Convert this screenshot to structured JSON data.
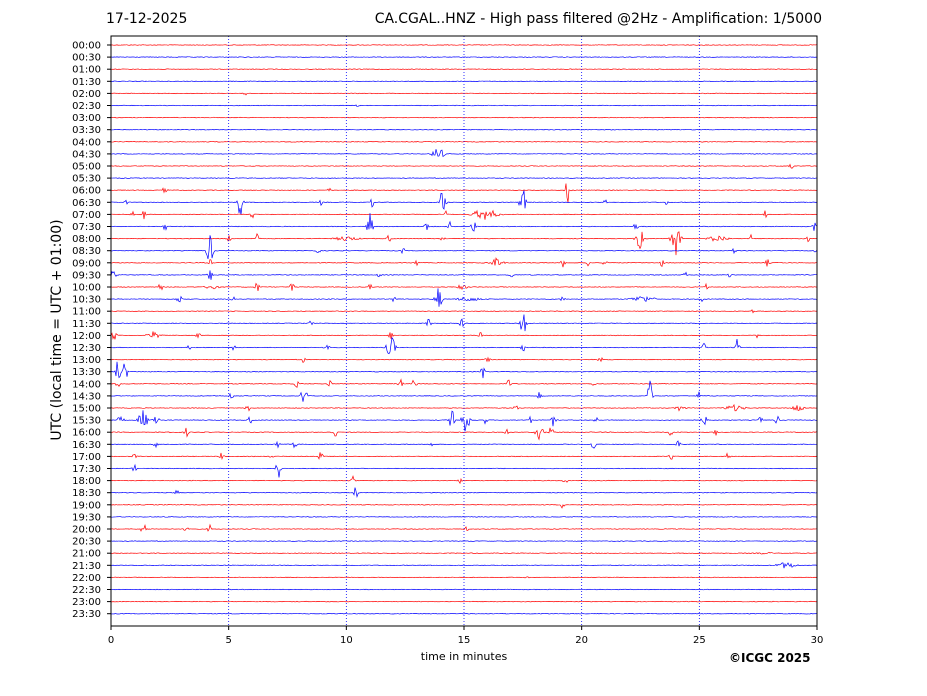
{
  "header": {
    "date": "17-12-2025",
    "title": "CA.CGAL..HNZ - High pass filtered @2Hz - Amplification: 1/5000"
  },
  "chart_data": {
    "type": "line",
    "title": "CA.CGAL..HNZ - High pass filtered @2Hz - Amplification: 1/5000",
    "subtitle": "17-12-2025",
    "xlabel": "time in minutes",
    "ylabel": "UTC (local time = UTC + 01:00)",
    "xlim": [
      0,
      30
    ],
    "x_ticks": [
      0,
      5,
      10,
      15,
      20,
      25,
      30
    ],
    "y_tick_labels": [
      "00:00",
      "00:30",
      "01:00",
      "01:30",
      "02:00",
      "02:30",
      "03:00",
      "03:30",
      "04:00",
      "04:30",
      "05:00",
      "05:30",
      "06:00",
      "06:30",
      "07:00",
      "07:30",
      "08:00",
      "08:30",
      "09:00",
      "09:30",
      "10:00",
      "10:30",
      "11:00",
      "11:30",
      "12:00",
      "12:30",
      "13:00",
      "13:30",
      "14:00",
      "14:30",
      "15:00",
      "15:30",
      "16:00",
      "16:30",
      "17:00",
      "17:30",
      "18:00",
      "18:30",
      "19:00",
      "19:30",
      "20:00",
      "20:30",
      "21:00",
      "21:30",
      "22:00",
      "22:30",
      "23:00",
      "23:30"
    ],
    "trace_colors": [
      "#ff0000",
      "#0000ff"
    ],
    "vertical_grid": "dotted blue at 5, 10, 15, 20, 25 minutes",
    "events": [
      {
        "row": 4,
        "x": 5.7,
        "amp": 0.3,
        "w": 0.08
      },
      {
        "row": 2,
        "x": 21.3,
        "amp": 0.15,
        "w": 0.05
      },
      {
        "row": 5,
        "x": 10.5,
        "amp": 0.25,
        "w": 0.1
      },
      {
        "row": 9,
        "x": 13.9,
        "amp": 1.0,
        "w": 0.25
      },
      {
        "row": 10,
        "x": 28.9,
        "amp": 0.7,
        "w": 0.1
      },
      {
        "row": 12,
        "x": 2.3,
        "amp": 0.8,
        "w": 0.1
      },
      {
        "row": 12,
        "x": 9.3,
        "amp": 0.35,
        "w": 0.1
      },
      {
        "row": 12,
        "x": 19.4,
        "amp": 1.6,
        "w": 0.12
      },
      {
        "row": 13,
        "x": 0.6,
        "amp": 0.5,
        "w": 0.1
      },
      {
        "row": 13,
        "x": 5.5,
        "amp": 2.0,
        "w": 0.12
      },
      {
        "row": 13,
        "x": 8.9,
        "amp": 0.5,
        "w": 0.08
      },
      {
        "row": 13,
        "x": 11.1,
        "amp": 0.6,
        "w": 0.1
      },
      {
        "row": 13,
        "x": 14.1,
        "amp": 1.8,
        "w": 0.15
      },
      {
        "row": 13,
        "x": 17.5,
        "amp": 1.8,
        "w": 0.15
      },
      {
        "row": 13,
        "x": 21.0,
        "amp": 0.6,
        "w": 0.08
      },
      {
        "row": 13,
        "x": 23.6,
        "amp": 0.5,
        "w": 0.08
      },
      {
        "row": 14,
        "x": 0.9,
        "amp": 0.5,
        "w": 0.1
      },
      {
        "row": 14,
        "x": 1.4,
        "amp": 0.6,
        "w": 0.1
      },
      {
        "row": 14,
        "x": 6.0,
        "amp": 0.6,
        "w": 0.1
      },
      {
        "row": 14,
        "x": 14.2,
        "amp": 0.6,
        "w": 0.1
      },
      {
        "row": 14,
        "x": 15.9,
        "amp": 0.7,
        "w": 0.6
      },
      {
        "row": 14,
        "x": 27.8,
        "amp": 0.5,
        "w": 0.08
      },
      {
        "row": 15,
        "x": 2.3,
        "amp": 0.5,
        "w": 0.1
      },
      {
        "row": 15,
        "x": 11.0,
        "amp": 2.0,
        "w": 0.12
      },
      {
        "row": 15,
        "x": 13.4,
        "amp": 0.6,
        "w": 0.1
      },
      {
        "row": 15,
        "x": 14.4,
        "amp": 0.6,
        "w": 0.08
      },
      {
        "row": 15,
        "x": 15.4,
        "amp": 0.9,
        "w": 0.1
      },
      {
        "row": 15,
        "x": 22.3,
        "amp": 0.6,
        "w": 0.1
      },
      {
        "row": 15,
        "x": 29.9,
        "amp": 0.6,
        "w": 0.1
      },
      {
        "row": 16,
        "x": 5.0,
        "amp": 0.6,
        "w": 0.1
      },
      {
        "row": 16,
        "x": 6.2,
        "amp": 0.6,
        "w": 0.1
      },
      {
        "row": 16,
        "x": 10.0,
        "amp": 0.3,
        "w": 0.6
      },
      {
        "row": 16,
        "x": 11.8,
        "amp": 0.6,
        "w": 0.1
      },
      {
        "row": 16,
        "x": 14.1,
        "amp": 0.4,
        "w": 0.1
      },
      {
        "row": 16,
        "x": 22.5,
        "amp": 1.8,
        "w": 0.2
      },
      {
        "row": 16,
        "x": 24.0,
        "amp": 2.2,
        "w": 0.2
      },
      {
        "row": 16,
        "x": 25.8,
        "amp": 0.4,
        "w": 0.5
      },
      {
        "row": 16,
        "x": 27.2,
        "amp": 0.5,
        "w": 0.1
      },
      {
        "row": 16,
        "x": 29.6,
        "amp": 0.5,
        "w": 0.1
      },
      {
        "row": 17,
        "x": 4.2,
        "amp": 2.0,
        "w": 0.15
      },
      {
        "row": 17,
        "x": 8.8,
        "amp": 0.4,
        "w": 0.1
      },
      {
        "row": 17,
        "x": 12.4,
        "amp": 0.4,
        "w": 0.1
      },
      {
        "row": 17,
        "x": 26.5,
        "amp": 0.5,
        "w": 0.1
      },
      {
        "row": 17,
        "x": 29.9,
        "amp": 0.4,
        "w": 0.1
      },
      {
        "row": 18,
        "x": 4.2,
        "amp": 0.5,
        "w": 0.1
      },
      {
        "row": 18,
        "x": 13.0,
        "amp": 0.5,
        "w": 0.1
      },
      {
        "row": 18,
        "x": 16.4,
        "amp": 0.6,
        "w": 0.3
      },
      {
        "row": 18,
        "x": 19.2,
        "amp": 0.6,
        "w": 0.1
      },
      {
        "row": 18,
        "x": 20.3,
        "amp": 0.6,
        "w": 0.1
      },
      {
        "row": 18,
        "x": 21.0,
        "amp": 0.6,
        "w": 0.1
      },
      {
        "row": 18,
        "x": 23.4,
        "amp": 0.5,
        "w": 0.1
      },
      {
        "row": 18,
        "x": 27.9,
        "amp": 0.5,
        "w": 0.1
      },
      {
        "row": 19,
        "x": 0.1,
        "amp": 0.6,
        "w": 0.15
      },
      {
        "row": 19,
        "x": 4.2,
        "amp": 0.8,
        "w": 0.12
      },
      {
        "row": 19,
        "x": 11.4,
        "amp": 0.35,
        "w": 0.1
      },
      {
        "row": 19,
        "x": 17.0,
        "amp": 0.4,
        "w": 0.1
      },
      {
        "row": 19,
        "x": 24.4,
        "amp": 0.4,
        "w": 0.1
      },
      {
        "row": 19,
        "x": 26.3,
        "amp": 0.4,
        "w": 0.1
      },
      {
        "row": 20,
        "x": 2.1,
        "amp": 0.6,
        "w": 0.1
      },
      {
        "row": 20,
        "x": 4.3,
        "amp": 0.4,
        "w": 0.3
      },
      {
        "row": 20,
        "x": 6.2,
        "amp": 0.8,
        "w": 0.1
      },
      {
        "row": 20,
        "x": 7.7,
        "amp": 0.7,
        "w": 0.1
      },
      {
        "row": 20,
        "x": 11.0,
        "amp": 0.7,
        "w": 0.1
      },
      {
        "row": 20,
        "x": 14.9,
        "amp": 0.3,
        "w": 0.3
      },
      {
        "row": 20,
        "x": 25.3,
        "amp": 0.4,
        "w": 0.1
      },
      {
        "row": 21,
        "x": 2.9,
        "amp": 0.5,
        "w": 0.15
      },
      {
        "row": 21,
        "x": 5.2,
        "amp": 0.5,
        "w": 0.1
      },
      {
        "row": 21,
        "x": 12.0,
        "amp": 0.4,
        "w": 0.1
      },
      {
        "row": 21,
        "x": 13.9,
        "amp": 1.8,
        "w": 0.15
      },
      {
        "row": 21,
        "x": 15.2,
        "amp": 0.3,
        "w": 0.6
      },
      {
        "row": 21,
        "x": 19.2,
        "amp": 0.4,
        "w": 0.1
      },
      {
        "row": 21,
        "x": 22.6,
        "amp": 0.4,
        "w": 0.6
      },
      {
        "row": 21,
        "x": 25.1,
        "amp": 0.4,
        "w": 0.1
      },
      {
        "row": 22,
        "x": 27.3,
        "amp": 0.4,
        "w": 0.1
      },
      {
        "row": 23,
        "x": 8.5,
        "amp": 0.5,
        "w": 0.1
      },
      {
        "row": 23,
        "x": 13.5,
        "amp": 0.7,
        "w": 0.1
      },
      {
        "row": 23,
        "x": 14.9,
        "amp": 0.7,
        "w": 0.1
      },
      {
        "row": 23,
        "x": 17.5,
        "amp": 1.8,
        "w": 0.15
      },
      {
        "row": 24,
        "x": 0.1,
        "amp": 0.8,
        "w": 0.15
      },
      {
        "row": 24,
        "x": 1.8,
        "amp": 0.5,
        "w": 0.3
      },
      {
        "row": 24,
        "x": 3.7,
        "amp": 0.5,
        "w": 0.1
      },
      {
        "row": 24,
        "x": 11.9,
        "amp": 0.6,
        "w": 0.1
      },
      {
        "row": 24,
        "x": 15.7,
        "amp": 0.5,
        "w": 0.1
      },
      {
        "row": 24,
        "x": 27.5,
        "amp": 0.4,
        "w": 0.1
      },
      {
        "row": 25,
        "x": 3.3,
        "amp": 0.4,
        "w": 0.1
      },
      {
        "row": 25,
        "x": 5.2,
        "amp": 0.5,
        "w": 0.1
      },
      {
        "row": 25,
        "x": 9.2,
        "amp": 0.6,
        "w": 0.15
      },
      {
        "row": 25,
        "x": 11.9,
        "amp": 1.4,
        "w": 0.2
      },
      {
        "row": 25,
        "x": 17.5,
        "amp": 0.6,
        "w": 0.1
      },
      {
        "row": 25,
        "x": 25.2,
        "amp": 0.6,
        "w": 0.1
      },
      {
        "row": 25,
        "x": 26.6,
        "amp": 1.8,
        "w": 0.1
      },
      {
        "row": 26,
        "x": 8.2,
        "amp": 0.6,
        "w": 0.1
      },
      {
        "row": 26,
        "x": 16.0,
        "amp": 0.5,
        "w": 0.1
      },
      {
        "row": 26,
        "x": 20.8,
        "amp": 0.6,
        "w": 0.1
      },
      {
        "row": 27,
        "x": 0.3,
        "amp": 2.0,
        "w": 0.1
      },
      {
        "row": 27,
        "x": 0.6,
        "amp": 1.6,
        "w": 0.1
      },
      {
        "row": 27,
        "x": 15.8,
        "amp": 1.2,
        "w": 0.1
      },
      {
        "row": 28,
        "x": 0.3,
        "amp": 0.6,
        "w": 0.1
      },
      {
        "row": 28,
        "x": 7.9,
        "amp": 0.6,
        "w": 0.1
      },
      {
        "row": 28,
        "x": 9.3,
        "amp": 0.5,
        "w": 0.1
      },
      {
        "row": 28,
        "x": 12.3,
        "amp": 0.7,
        "w": 0.1
      },
      {
        "row": 28,
        "x": 12.9,
        "amp": 0.8,
        "w": 0.1
      },
      {
        "row": 28,
        "x": 16.9,
        "amp": 0.6,
        "w": 0.1
      },
      {
        "row": 28,
        "x": 20.5,
        "amp": 0.4,
        "w": 0.1
      },
      {
        "row": 29,
        "x": 5.1,
        "amp": 0.5,
        "w": 0.1
      },
      {
        "row": 29,
        "x": 8.2,
        "amp": 2.0,
        "w": 0.12
      },
      {
        "row": 29,
        "x": 18.2,
        "amp": 0.5,
        "w": 0.1
      },
      {
        "row": 29,
        "x": 22.9,
        "amp": 2.0,
        "w": 0.12
      },
      {
        "row": 29,
        "x": 25.0,
        "amp": 0.6,
        "w": 0.1
      },
      {
        "row": 30,
        "x": 5.8,
        "amp": 0.6,
        "w": 0.1
      },
      {
        "row": 30,
        "x": 17.2,
        "amp": 0.6,
        "w": 0.1
      },
      {
        "row": 30,
        "x": 24.2,
        "amp": 0.5,
        "w": 0.2
      },
      {
        "row": 30,
        "x": 26.5,
        "amp": 0.4,
        "w": 0.5
      },
      {
        "row": 30,
        "x": 29.2,
        "amp": 0.5,
        "w": 0.3
      },
      {
        "row": 31,
        "x": 0.4,
        "amp": 0.4,
        "w": 0.2
      },
      {
        "row": 31,
        "x": 1.2,
        "amp": 0.6,
        "w": 0.1
      },
      {
        "row": 31,
        "x": 1.4,
        "amp": 1.6,
        "w": 0.15
      },
      {
        "row": 31,
        "x": 1.9,
        "amp": 0.9,
        "w": 0.15
      },
      {
        "row": 31,
        "x": 5.9,
        "amp": 0.6,
        "w": 0.1
      },
      {
        "row": 31,
        "x": 14.5,
        "amp": 1.8,
        "w": 0.12
      },
      {
        "row": 31,
        "x": 15.0,
        "amp": 1.8,
        "w": 0.12
      },
      {
        "row": 31,
        "x": 15.2,
        "amp": 0.8,
        "w": 0.1
      },
      {
        "row": 31,
        "x": 15.9,
        "amp": 0.5,
        "w": 0.1
      },
      {
        "row": 31,
        "x": 17.8,
        "amp": 0.5,
        "w": 0.1
      },
      {
        "row": 31,
        "x": 18.8,
        "amp": 0.8,
        "w": 0.1
      },
      {
        "row": 31,
        "x": 20.6,
        "amp": 0.5,
        "w": 0.1
      },
      {
        "row": 31,
        "x": 25.2,
        "amp": 0.6,
        "w": 0.15
      },
      {
        "row": 31,
        "x": 27.6,
        "amp": 0.5,
        "w": 0.1
      },
      {
        "row": 31,
        "x": 28.3,
        "amp": 0.6,
        "w": 0.1
      },
      {
        "row": 32,
        "x": 2.5,
        "amp": 0.5,
        "w": 0.1
      },
      {
        "row": 32,
        "x": 3.2,
        "amp": 0.6,
        "w": 0.1
      },
      {
        "row": 32,
        "x": 9.5,
        "amp": 0.9,
        "w": 0.12
      },
      {
        "row": 32,
        "x": 16.8,
        "amp": 0.5,
        "w": 0.1
      },
      {
        "row": 32,
        "x": 18.2,
        "amp": 0.9,
        "w": 0.2
      },
      {
        "row": 32,
        "x": 18.7,
        "amp": 0.8,
        "w": 0.1
      },
      {
        "row": 32,
        "x": 23.8,
        "amp": 0.6,
        "w": 0.1
      },
      {
        "row": 32,
        "x": 25.7,
        "amp": 0.5,
        "w": 0.1
      },
      {
        "row": 33,
        "x": 1.9,
        "amp": 0.5,
        "w": 0.1
      },
      {
        "row": 33,
        "x": 7.1,
        "amp": 0.6,
        "w": 0.1
      },
      {
        "row": 33,
        "x": 7.8,
        "amp": 0.5,
        "w": 0.1
      },
      {
        "row": 33,
        "x": 13.6,
        "amp": 0.5,
        "w": 0.1
      },
      {
        "row": 33,
        "x": 20.5,
        "amp": 0.8,
        "w": 0.1
      },
      {
        "row": 33,
        "x": 24.1,
        "amp": 0.5,
        "w": 0.1
      },
      {
        "row": 34,
        "x": 1.0,
        "amp": 0.5,
        "w": 0.1
      },
      {
        "row": 34,
        "x": 4.7,
        "amp": 0.5,
        "w": 0.1
      },
      {
        "row": 34,
        "x": 6.8,
        "amp": 0.5,
        "w": 0.1
      },
      {
        "row": 34,
        "x": 8.9,
        "amp": 0.6,
        "w": 0.12
      },
      {
        "row": 34,
        "x": 23.8,
        "amp": 0.5,
        "w": 0.1
      },
      {
        "row": 34,
        "x": 26.2,
        "amp": 0.5,
        "w": 0.1
      },
      {
        "row": 35,
        "x": 1.0,
        "amp": 0.5,
        "w": 0.1
      },
      {
        "row": 35,
        "x": 7.1,
        "amp": 1.6,
        "w": 0.12
      },
      {
        "row": 36,
        "x": 10.3,
        "amp": 0.6,
        "w": 0.1
      },
      {
        "row": 36,
        "x": 14.8,
        "amp": 0.6,
        "w": 0.1
      },
      {
        "row": 36,
        "x": 19.3,
        "amp": 0.5,
        "w": 0.1
      },
      {
        "row": 37,
        "x": 2.8,
        "amp": 0.6,
        "w": 0.1
      },
      {
        "row": 37,
        "x": 10.4,
        "amp": 0.8,
        "w": 0.1
      },
      {
        "row": 38,
        "x": 19.2,
        "amp": 0.5,
        "w": 0.1
      },
      {
        "row": 40,
        "x": 1.4,
        "amp": 0.5,
        "w": 0.2
      },
      {
        "row": 40,
        "x": 3.2,
        "amp": 0.6,
        "w": 0.1
      },
      {
        "row": 40,
        "x": 4.2,
        "amp": 0.6,
        "w": 0.1
      },
      {
        "row": 40,
        "x": 15.1,
        "amp": 0.3,
        "w": 0.1
      },
      {
        "row": 42,
        "x": 27.8,
        "amp": 0.15,
        "w": 0.4
      },
      {
        "row": 43,
        "x": 28.7,
        "amp": 0.4,
        "w": 0.5
      },
      {
        "row": 44,
        "x": 17.6,
        "amp": 0.1,
        "w": 0.3
      }
    ]
  },
  "footer": {
    "copyright": "©ICGC 2025"
  }
}
